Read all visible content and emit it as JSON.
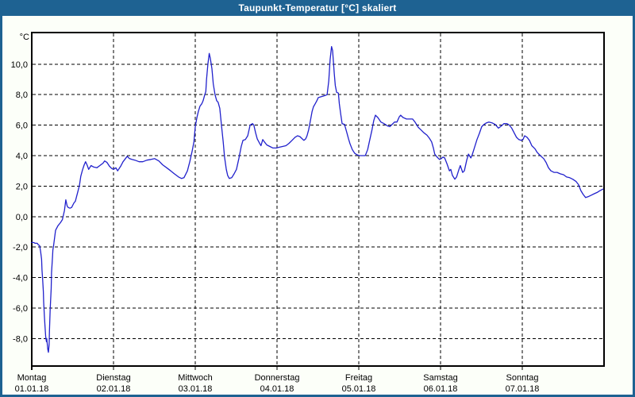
{
  "window": {
    "title": "Taupunkt-Temperatur [°C] skaliert"
  },
  "colors": {
    "titlebar": "#1E6292",
    "border": "#1E6292",
    "background": "#FCFFF9",
    "plot_background": "#FFFFFF",
    "grid": "#000000",
    "frame": "#000000",
    "line": "#2121CC",
    "text": "#000000",
    "title_text": "#FFFFFF"
  },
  "chart_data": {
    "type": "line",
    "title": "Taupunkt-Temperatur [°C] skaliert",
    "unit_label": "°C",
    "grid": "dashed",
    "legend": "none",
    "ylim": [
      -9.8,
      12.07
    ],
    "x_total_hours": 168,
    "y_ticks": [
      {
        "value": 10,
        "label": "10,0"
      },
      {
        "value": 8,
        "label": "8,0"
      },
      {
        "value": 6,
        "label": "6,0"
      },
      {
        "value": 4,
        "label": "4,0"
      },
      {
        "value": 2,
        "label": "2,0"
      },
      {
        "value": 0,
        "label": "0,0"
      },
      {
        "value": -2,
        "label": "-2,0"
      },
      {
        "value": -4,
        "label": "-4,0"
      },
      {
        "value": -6,
        "label": "-6,0"
      },
      {
        "value": -8,
        "label": "-8,0"
      }
    ],
    "x_days": [
      {
        "name": "Montag",
        "date": "01.01.18",
        "start_hour": 0
      },
      {
        "name": "Dienstag",
        "date": "02.01.18",
        "start_hour": 24
      },
      {
        "name": "Mittwoch",
        "date": "03.01.18",
        "start_hour": 48
      },
      {
        "name": "Donnerstag",
        "date": "04.01.18",
        "start_hour": 72
      },
      {
        "name": "Freitag",
        "date": "05.01.18",
        "start_hour": 96
      },
      {
        "name": "Samstag",
        "date": "06.01.18",
        "start_hour": 120
      },
      {
        "name": "Sonntag",
        "date": "07.01.18",
        "start_hour": 144
      }
    ],
    "series": [
      {
        "name": "Taupunkt-Temperatur",
        "color": "#2121CC",
        "points": [
          [
            0,
            -1.7
          ],
          [
            0.5,
            -1.7
          ],
          [
            1,
            -1.75
          ],
          [
            1.6,
            -1.75
          ],
          [
            1.9,
            -1.85
          ],
          [
            2.3,
            -1.9
          ],
          [
            2.6,
            -2.3
          ],
          [
            2.9,
            -2.8
          ],
          [
            3.0,
            -3.5
          ],
          [
            3.2,
            -4.1
          ],
          [
            3.4,
            -4.9
          ],
          [
            3.5,
            -5.6
          ],
          [
            3.7,
            -6.5
          ],
          [
            3.9,
            -7.2
          ],
          [
            4.1,
            -7.9
          ],
          [
            4.3,
            -8.2
          ],
          [
            4.4,
            -8.0
          ],
          [
            4.7,
            -8.7
          ],
          [
            4.9,
            -8.9
          ],
          [
            5.1,
            -8.4
          ],
          [
            5.2,
            -7.5
          ],
          [
            5.4,
            -6.1
          ],
          [
            5.7,
            -4.7
          ],
          [
            5.8,
            -3.7
          ],
          [
            6.1,
            -2.6
          ],
          [
            6.2,
            -2.2
          ],
          [
            6.4,
            -1.9
          ],
          [
            7.0,
            -0.9
          ],
          [
            7.7,
            -0.6
          ],
          [
            8.4,
            -0.4
          ],
          [
            9.0,
            -0.2
          ],
          [
            9.6,
            0.4
          ],
          [
            10.0,
            1.1
          ],
          [
            10.4,
            0.7
          ],
          [
            10.7,
            0.6
          ],
          [
            11.2,
            0.55
          ],
          [
            11.7,
            0.6
          ],
          [
            12.4,
            0.9
          ],
          [
            12.8,
            1.0
          ],
          [
            13.5,
            1.6
          ],
          [
            14.0,
            2.05
          ],
          [
            14.4,
            2.65
          ],
          [
            14.9,
            3.05
          ],
          [
            15.4,
            3.4
          ],
          [
            15.8,
            3.6
          ],
          [
            16.3,
            3.35
          ],
          [
            16.7,
            3.1
          ],
          [
            17.4,
            3.35
          ],
          [
            18.2,
            3.25
          ],
          [
            19.1,
            3.2
          ],
          [
            20.0,
            3.35
          ],
          [
            20.9,
            3.5
          ],
          [
            21.4,
            3.65
          ],
          [
            22.1,
            3.55
          ],
          [
            22.8,
            3.3
          ],
          [
            23.5,
            3.15
          ],
          [
            24.0,
            3.1
          ],
          [
            24.7,
            3.2
          ],
          [
            25.2,
            3.0
          ],
          [
            26.1,
            3.3
          ],
          [
            26.8,
            3.6
          ],
          [
            27.5,
            3.8
          ],
          [
            28.0,
            3.95
          ],
          [
            28.7,
            3.8
          ],
          [
            29.4,
            3.75
          ],
          [
            30.3,
            3.7
          ],
          [
            31.5,
            3.6
          ],
          [
            32.6,
            3.6
          ],
          [
            33.8,
            3.7
          ],
          [
            35.0,
            3.75
          ],
          [
            36.1,
            3.8
          ],
          [
            37.3,
            3.65
          ],
          [
            38.4,
            3.4
          ],
          [
            39.6,
            3.2
          ],
          [
            40.8,
            3.0
          ],
          [
            41.9,
            2.8
          ],
          [
            43.1,
            2.6
          ],
          [
            44.0,
            2.5
          ],
          [
            44.7,
            2.55
          ],
          [
            45.7,
            3.0
          ],
          [
            46.4,
            3.6
          ],
          [
            47.1,
            4.3
          ],
          [
            47.6,
            4.9
          ],
          [
            48.0,
            5.9
          ],
          [
            48.5,
            6.5
          ],
          [
            48.9,
            6.9
          ],
          [
            49.4,
            7.25
          ],
          [
            49.9,
            7.4
          ],
          [
            50.3,
            7.6
          ],
          [
            50.8,
            8.0
          ],
          [
            51.1,
            8.2
          ],
          [
            51.3,
            9.0
          ],
          [
            51.7,
            10.0
          ],
          [
            52.1,
            10.7
          ],
          [
            52.4,
            10.4
          ],
          [
            52.9,
            9.7
          ],
          [
            53.3,
            8.7
          ],
          [
            53.8,
            8.0
          ],
          [
            54.3,
            7.6
          ],
          [
            54.7,
            7.5
          ],
          [
            55.2,
            7.1
          ],
          [
            55.7,
            6.0
          ],
          [
            56.2,
            4.9
          ],
          [
            56.6,
            3.9
          ],
          [
            57.1,
            3.1
          ],
          [
            57.5,
            2.7
          ],
          [
            58.0,
            2.5
          ],
          [
            58.7,
            2.55
          ],
          [
            59.4,
            2.8
          ],
          [
            60.1,
            3.1
          ],
          [
            60.8,
            3.8
          ],
          [
            61.5,
            4.6
          ],
          [
            62.0,
            5.0
          ],
          [
            62.7,
            5.05
          ],
          [
            63.4,
            5.3
          ],
          [
            64.1,
            6.0
          ],
          [
            64.8,
            6.1
          ],
          [
            65.2,
            6.0
          ],
          [
            65.7,
            5.5
          ],
          [
            66.2,
            5.1
          ],
          [
            66.9,
            4.8
          ],
          [
            67.3,
            4.65
          ],
          [
            67.8,
            5.05
          ],
          [
            68.3,
            4.9
          ],
          [
            69.0,
            4.7
          ],
          [
            69.9,
            4.6
          ],
          [
            70.8,
            4.5
          ],
          [
            71.8,
            4.5
          ],
          [
            72.7,
            4.55
          ],
          [
            73.6,
            4.6
          ],
          [
            74.6,
            4.65
          ],
          [
            75.5,
            4.8
          ],
          [
            76.4,
            5.0
          ],
          [
            77.3,
            5.2
          ],
          [
            78.0,
            5.3
          ],
          [
            78.7,
            5.25
          ],
          [
            79.4,
            5.1
          ],
          [
            79.9,
            5.0
          ],
          [
            80.4,
            5.1
          ],
          [
            80.8,
            5.3
          ],
          [
            81.3,
            5.7
          ],
          [
            81.8,
            6.3
          ],
          [
            82.3,
            6.9
          ],
          [
            82.7,
            7.2
          ],
          [
            83.2,
            7.4
          ],
          [
            83.7,
            7.6
          ],
          [
            84.1,
            7.8
          ],
          [
            84.8,
            7.85
          ],
          [
            85.5,
            7.9
          ],
          [
            86.2,
            7.95
          ],
          [
            86.7,
            8.0
          ],
          [
            87.2,
            8.9
          ],
          [
            87.6,
            10.3
          ],
          [
            88.0,
            11.15
          ],
          [
            88.3,
            10.9
          ],
          [
            88.8,
            9.4
          ],
          [
            89.1,
            8.6
          ],
          [
            89.5,
            8.15
          ],
          [
            90.0,
            8.1
          ],
          [
            90.3,
            7.4
          ],
          [
            90.7,
            6.7
          ],
          [
            91.1,
            6.1
          ],
          [
            91.8,
            6.05
          ],
          [
            92.5,
            5.5
          ],
          [
            93.0,
            5.1
          ],
          [
            93.4,
            4.8
          ],
          [
            94.1,
            4.4
          ],
          [
            94.8,
            4.15
          ],
          [
            95.5,
            4.05
          ],
          [
            96.2,
            4.0
          ],
          [
            97.2,
            4.0
          ],
          [
            97.9,
            4.0
          ],
          [
            98.6,
            4.4
          ],
          [
            99.2,
            5.0
          ],
          [
            99.9,
            5.7
          ],
          [
            100.4,
            6.3
          ],
          [
            100.9,
            6.65
          ],
          [
            101.6,
            6.5
          ],
          [
            102.5,
            6.2
          ],
          [
            103.4,
            6.1
          ],
          [
            104.4,
            5.95
          ],
          [
            105.1,
            5.9
          ],
          [
            105.8,
            6.05
          ],
          [
            106.5,
            6.2
          ],
          [
            107.2,
            6.2
          ],
          [
            107.9,
            6.55
          ],
          [
            108.3,
            6.65
          ],
          [
            109.0,
            6.5
          ],
          [
            110.0,
            6.4
          ],
          [
            110.9,
            6.4
          ],
          [
            111.8,
            6.4
          ],
          [
            112.5,
            6.2
          ],
          [
            113.5,
            5.85
          ],
          [
            114.2,
            5.7
          ],
          [
            115.1,
            5.5
          ],
          [
            116.0,
            5.35
          ],
          [
            116.7,
            5.15
          ],
          [
            117.4,
            4.9
          ],
          [
            117.9,
            4.5
          ],
          [
            118.3,
            4.1
          ],
          [
            119.0,
            3.9
          ],
          [
            119.7,
            3.75
          ],
          [
            120.2,
            3.8
          ],
          [
            120.7,
            3.9
          ],
          [
            121.2,
            3.85
          ],
          [
            121.9,
            3.45
          ],
          [
            122.6,
            3.0
          ],
          [
            123.0,
            3.1
          ],
          [
            123.5,
            2.7
          ],
          [
            124.2,
            2.45
          ],
          [
            124.7,
            2.6
          ],
          [
            125.4,
            3.1
          ],
          [
            125.8,
            3.35
          ],
          [
            126.5,
            2.9
          ],
          [
            127.0,
            3.0
          ],
          [
            127.7,
            3.7
          ],
          [
            128.2,
            4.1
          ],
          [
            128.9,
            3.85
          ],
          [
            129.3,
            4.05
          ],
          [
            130.0,
            4.55
          ],
          [
            130.7,
            5.05
          ],
          [
            131.4,
            5.45
          ],
          [
            132.1,
            5.9
          ],
          [
            132.8,
            6.05
          ],
          [
            133.5,
            6.15
          ],
          [
            134.2,
            6.2
          ],
          [
            135.1,
            6.15
          ],
          [
            136.0,
            6.05
          ],
          [
            137.0,
            5.8
          ],
          [
            137.9,
            5.95
          ],
          [
            138.6,
            6.1
          ],
          [
            139.5,
            6.1
          ],
          [
            140.2,
            6.0
          ],
          [
            140.9,
            5.8
          ],
          [
            141.6,
            5.5
          ],
          [
            142.3,
            5.2
          ],
          [
            143.0,
            5.05
          ],
          [
            143.7,
            5.0
          ],
          [
            144.2,
            5.05
          ],
          [
            144.7,
            5.3
          ],
          [
            145.4,
            5.2
          ],
          [
            146.1,
            5.0
          ],
          [
            146.8,
            4.65
          ],
          [
            147.7,
            4.45
          ],
          [
            148.4,
            4.2
          ],
          [
            149.3,
            4.0
          ],
          [
            150.3,
            3.8
          ],
          [
            151.0,
            3.55
          ],
          [
            151.7,
            3.2
          ],
          [
            152.4,
            3.0
          ],
          [
            153.3,
            2.9
          ],
          [
            154.2,
            2.9
          ],
          [
            155.2,
            2.8
          ],
          [
            156.1,
            2.75
          ],
          [
            157.0,
            2.6
          ],
          [
            157.9,
            2.55
          ],
          [
            158.8,
            2.45
          ],
          [
            159.8,
            2.3
          ],
          [
            160.5,
            2.1
          ],
          [
            161.2,
            1.7
          ],
          [
            161.9,
            1.45
          ],
          [
            162.6,
            1.25
          ],
          [
            163.3,
            1.3
          ],
          [
            164.2,
            1.4
          ],
          [
            165.1,
            1.5
          ],
          [
            166.1,
            1.6
          ],
          [
            166.8,
            1.7
          ],
          [
            167.7,
            1.8
          ]
        ]
      }
    ]
  }
}
